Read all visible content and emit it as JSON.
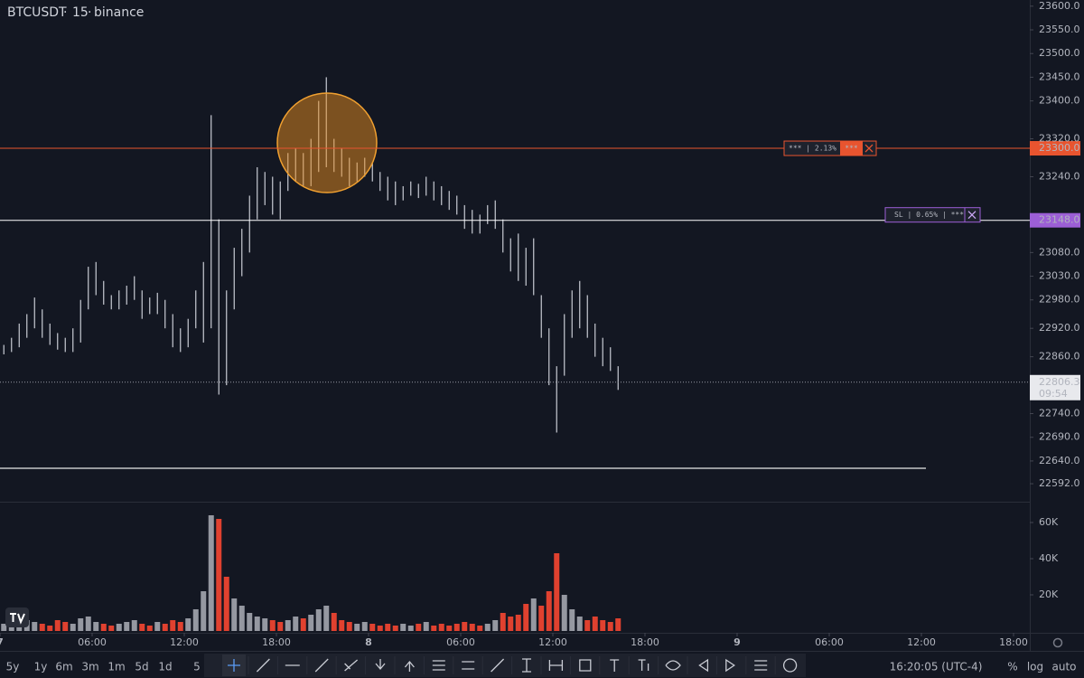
{
  "chart_data": {
    "type": "ohlc",
    "title": "BTCUSDT",
    "interval": "15",
    "exchange": "binance",
    "bar_color": "#c9ccd4",
    "x": [
      0.25,
      0.75,
      1.25,
      1.75,
      2.25,
      2.75,
      3.25,
      3.75,
      4.25,
      4.75,
      5.25,
      5.75,
      6.25,
      6.75,
      7.25,
      7.75,
      8.25,
      8.75,
      9.25,
      9.75,
      10.25,
      10.75,
      11.25,
      11.75,
      12.25,
      12.75,
      13.25,
      13.75,
      14.25,
      14.75,
      15.25,
      15.75,
      16.25,
      16.75,
      17.25,
      17.75,
      18.25,
      18.75,
      19.25,
      19.75,
      20.25,
      20.75,
      21.25,
      21.75,
      22.25,
      22.75,
      23.25,
      23.75,
      24.25,
      24.75,
      25.25,
      25.75,
      26.25,
      26.75,
      27.25,
      27.75,
      28.25,
      28.75,
      29.25,
      29.75,
      30.25,
      30.75,
      31.25,
      31.75,
      32.25,
      32.75,
      33.25,
      33.75,
      34.25,
      34.75,
      35.25,
      35.75,
      36.25,
      36.75,
      37.25,
      37.75,
      38.25,
      38.75,
      39.25,
      39.75,
      40.25
    ],
    "high": [
      22885,
      22900,
      22930,
      22950,
      22985,
      22960,
      22930,
      22910,
      22900,
      22920,
      22980,
      23050,
      23060,
      23020,
      22990,
      23000,
      23010,
      23030,
      23000,
      22985,
      22995,
      22980,
      22950,
      22920,
      22940,
      23000,
      23060,
      23370,
      23150,
      23000,
      23090,
      23130,
      23200,
      23260,
      23250,
      23240,
      23230,
      23290,
      23300,
      23290,
      23320,
      23400,
      23450,
      23320,
      23300,
      23280,
      23270,
      23280,
      23270,
      23250,
      23240,
      23230,
      23220,
      23230,
      23225,
      23240,
      23230,
      23220,
      23210,
      23200,
      23180,
      23170,
      23160,
      23180,
      23190,
      23150,
      23110,
      23120,
      23090,
      23110,
      22990,
      22920,
      22840,
      22950,
      23000,
      23020,
      22990,
      22930,
      22900,
      22880,
      22840
    ],
    "low": [
      22865,
      22870,
      22880,
      22900,
      22920,
      22900,
      22885,
      22875,
      22870,
      22870,
      22890,
      22960,
      22990,
      22970,
      22960,
      22960,
      22970,
      22980,
      22940,
      22950,
      22950,
      22920,
      22880,
      22870,
      22880,
      22920,
      22890,
      22920,
      22780,
      22800,
      22960,
      23030,
      23080,
      23150,
      23180,
      23160,
      23150,
      23210,
      23230,
      23220,
      23220,
      23250,
      23260,
      23250,
      23240,
      23220,
      23230,
      23240,
      23230,
      23210,
      23190,
      23180,
      23190,
      23200,
      23195,
      23200,
      23190,
      23180,
      23170,
      23160,
      23130,
      23120,
      23120,
      23140,
      23130,
      23080,
      23040,
      23020,
      23010,
      22990,
      22900,
      22800,
      22700,
      22820,
      22900,
      22920,
      22900,
      22860,
      22840,
      22830,
      22790
    ],
    "volume": [
      4000,
      5000,
      3000,
      6000,
      5000,
      4000,
      3000,
      6000,
      5000,
      4000,
      7000,
      8000,
      5000,
      4000,
      3000,
      4000,
      5000,
      6000,
      4000,
      3000,
      5000,
      4000,
      6000,
      5000,
      7000,
      12000,
      22000,
      64000,
      62000,
      30000,
      18000,
      14000,
      10000,
      8000,
      7000,
      6000,
      5000,
      6000,
      8000,
      7000,
      9000,
      12000,
      14000,
      10000,
      6000,
      5000,
      4000,
      5000,
      4000,
      3000,
      4000,
      3000,
      4000,
      3000,
      4000,
      5000,
      3000,
      4000,
      3000,
      4000,
      5000,
      4000,
      3000,
      4000,
      6000,
      10000,
      8000,
      9000,
      15000,
      18000,
      14000,
      22000,
      43000,
      20000,
      12000,
      8000,
      6000,
      8000,
      6000,
      5000,
      7000
    ],
    "up_color": "#9598a1",
    "down_color": "#e0412f",
    "xlim": [
      0,
      67
    ],
    "xticks": [
      {
        "value": 0,
        "label": "7"
      },
      {
        "value": 6,
        "label": "06:00"
      },
      {
        "value": 12,
        "label": "12:00"
      },
      {
        "value": 18,
        "label": "18:00"
      },
      {
        "value": 24,
        "label": "8"
      },
      {
        "value": 30,
        "label": "06:00"
      },
      {
        "value": 36,
        "label": "12:00"
      },
      {
        "value": 42,
        "label": "18:00"
      },
      {
        "value": 48,
        "label": "9"
      },
      {
        "value": 54,
        "label": "06:00"
      },
      {
        "value": 60,
        "label": "12:00"
      },
      {
        "value": 66,
        "label": "18:00"
      }
    ],
    "ylim": [
      22554,
      23613
    ],
    "yticks": [
      {
        "value": 23600,
        "label": "23600.0"
      },
      {
        "value": 23550,
        "label": "23550.0"
      },
      {
        "value": 23500,
        "label": "23500.0"
      },
      {
        "value": 23450,
        "label": "23450.0"
      },
      {
        "value": 23400,
        "label": "23400.0"
      },
      {
        "value": 23320,
        "label": "23320.0"
      },
      {
        "value": 23240,
        "label": "23240.0"
      },
      {
        "value": 23080,
        "label": "23080.0"
      },
      {
        "value": 23030,
        "label": "23030.0"
      },
      {
        "value": 22980,
        "label": "22980.0"
      },
      {
        "value": 22920,
        "label": "22920.0"
      },
      {
        "value": 22860,
        "label": "22860.0"
      },
      {
        "value": 22740,
        "label": "22740.0"
      },
      {
        "value": 22690,
        "label": "22690.0"
      },
      {
        "value": 22640,
        "label": "22640.0"
      },
      {
        "value": 22592,
        "label": "22592.0"
      }
    ],
    "y2lim": [
      0,
      70000
    ],
    "y2ticks": [
      {
        "value": 20000,
        "label": "20K"
      },
      {
        "value": 40000,
        "label": "40K"
      },
      {
        "value": 60000,
        "label": "60K"
      }
    ],
    "price_lines": [
      {
        "value": 23300,
        "label": "23300.0",
        "color": "#e8542f"
      },
      {
        "value": 23148,
        "label": "23148.0",
        "color": "#ffffff",
        "tag_color": "#9c5fd6"
      }
    ],
    "last_price": 22806.3,
    "countdown": "09:54",
    "orders": [
      {
        "text": "*** | 2.13%",
        "qty": "***"
      },
      {
        "text": "SL | 0.65% | ***"
      }
    ]
  },
  "toolbar": {
    "ranges": [
      "5y",
      "1y",
      "6m",
      "3m",
      "1m",
      "5d",
      "1d",
      "5"
    ],
    "clock": "16:20:05 (UTC-4)",
    "scale_buttons": [
      "%",
      "log",
      "auto"
    ]
  }
}
